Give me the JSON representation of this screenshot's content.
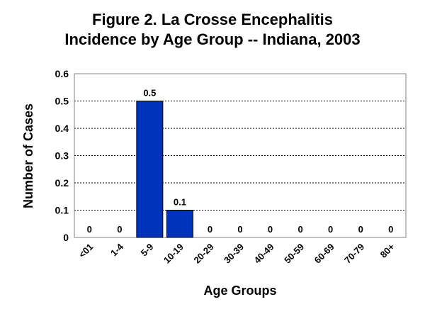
{
  "chart_data": {
    "type": "bar",
    "title": [
      "Figure 2.  La Crosse Encephalitis",
      "Incidence by Age Group -- Indiana, 2003"
    ],
    "xlabel": "Age Groups",
    "ylabel": "Number of Cases",
    "categories": [
      "<01",
      "1-4",
      "5-9",
      "10-19",
      "20-29",
      "30-39",
      "40-49",
      "50-59",
      "60-69",
      "70-79",
      "80+"
    ],
    "values": [
      0,
      0,
      0.5,
      0.1,
      0,
      0,
      0,
      0,
      0,
      0,
      0
    ],
    "data_labels": [
      "0",
      "0",
      "0.5",
      "0.1",
      "0",
      "0",
      "0",
      "0",
      "0",
      "0",
      "0"
    ],
    "ylim": [
      0,
      0.6
    ],
    "yticks": [
      "0",
      "0.1",
      "0.2",
      "0.3",
      "0.4",
      "0.5",
      "0.6"
    ],
    "grid": true,
    "legend": "none",
    "bar_color": "#0033BB"
  }
}
